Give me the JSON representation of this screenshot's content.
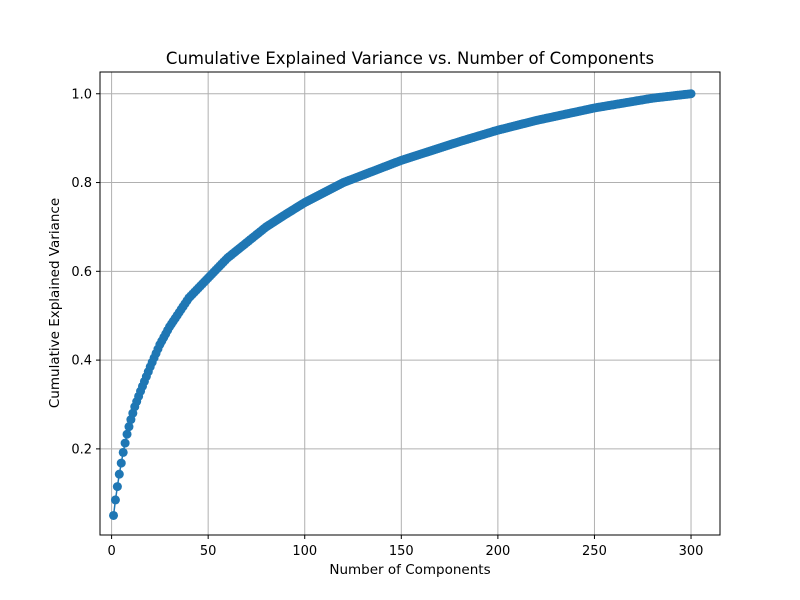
{
  "chart_data": {
    "type": "line",
    "title": "Cumulative Explained Variance vs. Number of Components",
    "xlabel": "Number of Components",
    "ylabel": "Cumulative Explained Variance",
    "xlim": [
      -6,
      315
    ],
    "ylim": [
      0.006,
      1.049
    ],
    "xticks": [
      0,
      50,
      100,
      150,
      200,
      250,
      300
    ],
    "yticks": [
      0.2,
      0.4,
      0.6,
      0.8,
      1.0
    ],
    "grid": true,
    "marker": "circle",
    "color": "#1f77b4",
    "series": [
      {
        "anchors": [
          [
            1,
            0.05
          ],
          [
            2,
            0.085
          ],
          [
            3,
            0.115
          ],
          [
            4,
            0.143
          ],
          [
            5,
            0.168
          ],
          [
            6,
            0.192
          ],
          [
            7,
            0.213
          ],
          [
            8,
            0.233
          ],
          [
            9,
            0.25
          ],
          [
            10,
            0.266
          ],
          [
            12,
            0.295
          ],
          [
            15,
            0.33
          ],
          [
            20,
            0.385
          ],
          [
            25,
            0.435
          ],
          [
            30,
            0.475
          ],
          [
            40,
            0.54
          ],
          [
            50,
            0.585
          ],
          [
            60,
            0.63
          ],
          [
            70,
            0.665
          ],
          [
            80,
            0.7
          ],
          [
            90,
            0.728
          ],
          [
            100,
            0.755
          ],
          [
            120,
            0.8
          ],
          [
            150,
            0.85
          ],
          [
            180,
            0.892
          ],
          [
            200,
            0.918
          ],
          [
            220,
            0.94
          ],
          [
            250,
            0.968
          ],
          [
            280,
            0.99
          ],
          [
            300,
            1.0
          ]
        ]
      }
    ]
  }
}
